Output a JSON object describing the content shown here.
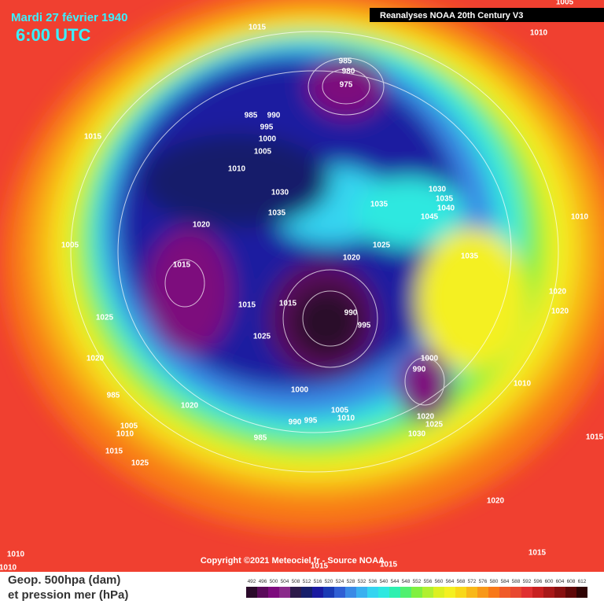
{
  "header": {
    "date": "Mardi 27 février 1940",
    "time": "6:00 UTC",
    "source_label": "Reanalyses NOAA 20th Century V3"
  },
  "copyright": "Copyright ©2021 Meteociel.fr - Source NOAA",
  "legend": {
    "line1": "Geop. 500hpa (dam)",
    "line2": "et pression mer (hPa)"
  },
  "colorbar": {
    "values": [
      492,
      496,
      500,
      504,
      508,
      512,
      516,
      520,
      524,
      528,
      532,
      536,
      540,
      544,
      548,
      552,
      556,
      560,
      564,
      568,
      572,
      576,
      580,
      584,
      588,
      592,
      596,
      600,
      604,
      608,
      612
    ],
    "colors": [
      "#2a0a2a",
      "#5a0a5a",
      "#7d0a7d",
      "#8a2a8a",
      "#2c1a4a",
      "#161e6a",
      "#1a1aa0",
      "#1a3ab4",
      "#2f5fd4",
      "#3a8ae6",
      "#3ab0f0",
      "#35d4f0",
      "#2ee8e0",
      "#2ef0b0",
      "#50f070",
      "#80f040",
      "#b0f030",
      "#dcf020",
      "#f4f020",
      "#f8d818",
      "#f8b818",
      "#f89818",
      "#f87818",
      "#f05a28",
      "#e84830",
      "#e03030",
      "#c82020",
      "#a81818",
      "#881010",
      "#600808",
      "#300404"
    ]
  },
  "isobar_labels": [
    1015,
    1010,
    1005,
    985,
    980,
    975,
    985,
    990,
    995,
    1000,
    1005,
    1010,
    1015,
    1030,
    1035,
    1035,
    1030,
    1035,
    1040,
    1045,
    1010,
    1005,
    1020,
    1015,
    1020,
    1025,
    1035,
    1020,
    1020,
    1015,
    1015,
    1025,
    990,
    995,
    1025,
    1020,
    1000,
    990,
    1010,
    1000,
    985,
    1020,
    1005,
    1010,
    990,
    995,
    1020,
    1025,
    1005,
    1010,
    985,
    1030,
    1015,
    1025,
    1015,
    1020,
    1010,
    1010,
    1015,
    1015,
    1015
  ]
}
